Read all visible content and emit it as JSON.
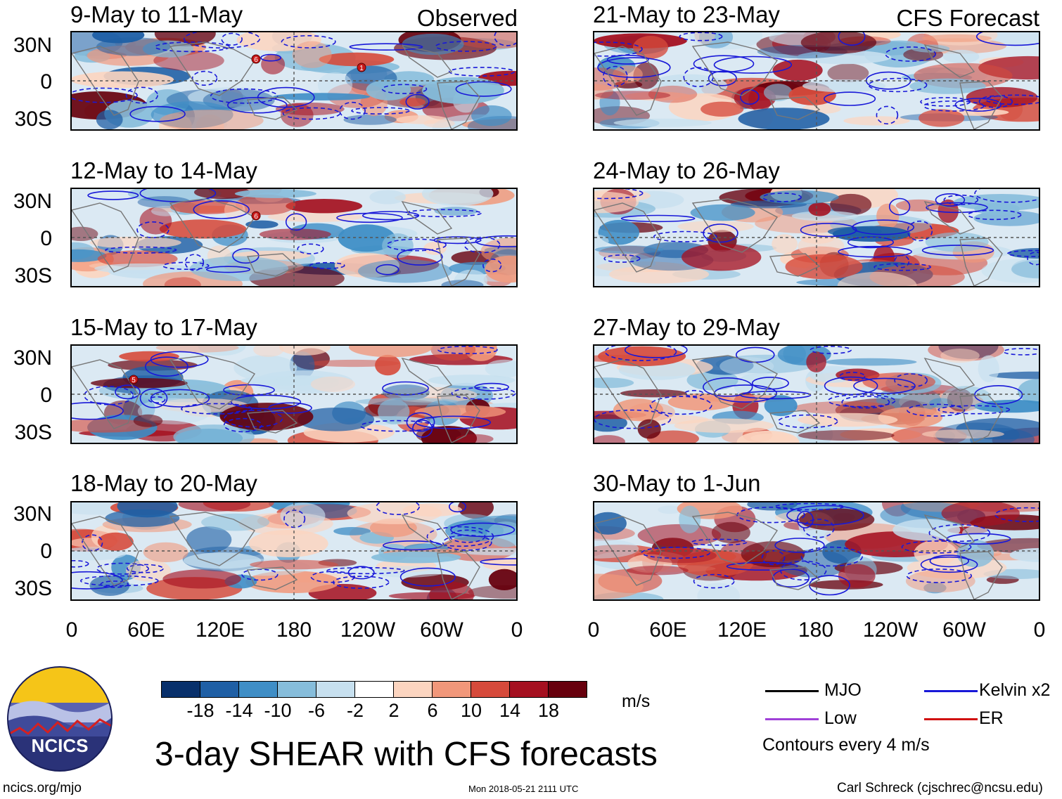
{
  "figure": {
    "title": "3-day SHEAR with CFS forecasts",
    "column_labels": {
      "observed": "Observed",
      "forecast": "CFS Forecast"
    },
    "units": "m/s",
    "contour_note": "Contours every 4 m/s",
    "footer_left": "ncics.org/mjo",
    "footer_center": "Mon 2018-05-21 2111 UTC",
    "footer_right": "Carl Schreck (cjschrec@ncsu.edu)",
    "logo_text": "NCICS"
  },
  "panels": {
    "left": [
      {
        "period": "9-May to 11-May"
      },
      {
        "period": "12-May to 14-May"
      },
      {
        "period": "15-May to 17-May"
      },
      {
        "period": "18-May to 20-May"
      }
    ],
    "right": [
      {
        "period": "21-May to 23-May"
      },
      {
        "period": "24-May to 26-May"
      },
      {
        "period": "27-May to 29-May"
      },
      {
        "period": "30-May to 1-Jun"
      }
    ]
  },
  "axes": {
    "lat_labels": [
      "30N",
      "0",
      "30S"
    ],
    "lon_labels": [
      "0",
      "60E",
      "120E",
      "180",
      "120W",
      "60W",
      "0"
    ]
  },
  "colorbar": {
    "ticks": [
      "-18",
      "-14",
      "-10",
      "-6",
      "-2",
      "2",
      "6",
      "10",
      "14",
      "18"
    ],
    "colors": [
      "#08306b",
      "#1f5fa5",
      "#3f8ec6",
      "#86bddb",
      "#c7e0ef",
      "#ffffff",
      "#fcd5c0",
      "#f1977a",
      "#d64a3b",
      "#a51020",
      "#67000d"
    ]
  },
  "legend": [
    {
      "label": "MJO",
      "color": "#000000"
    },
    {
      "label": "Kelvin x2",
      "color": "#1818d8"
    },
    {
      "label": "Low",
      "color": "#a040d8"
    },
    {
      "label": "ER",
      "color": "#d01010"
    }
  ],
  "storm_markers": [
    {
      "label": "6",
      "panel": "left-0"
    },
    {
      "label": "1",
      "panel": "left-0"
    },
    {
      "label": "6",
      "panel": "left-1"
    },
    {
      "label": "5",
      "panel": "left-2"
    }
  ]
}
